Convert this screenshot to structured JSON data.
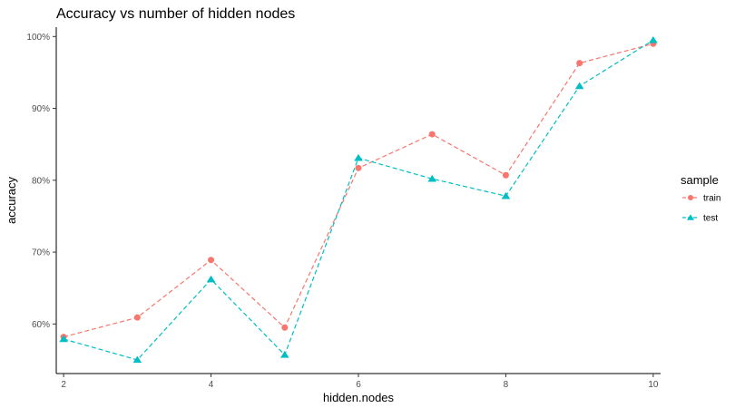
{
  "chart_data": {
    "type": "line",
    "title": "Accuracy vs number of hidden nodes",
    "xlabel": "hidden.nodes",
    "ylabel": "accuracy",
    "x": [
      2,
      3,
      4,
      5,
      6,
      7,
      8,
      9,
      10
    ],
    "xlim": [
      1.9,
      10.1
    ],
    "ylim": [
      53.1,
      101.3
    ],
    "x_ticks": [
      2,
      4,
      6,
      8,
      10
    ],
    "y_ticks": [
      60,
      70,
      80,
      90,
      100
    ],
    "y_tick_labels": [
      "60%",
      "70%",
      "80%",
      "90%",
      "100%"
    ],
    "grid": false,
    "legend_position": "right",
    "legend_title": "sample",
    "series": [
      {
        "name": "train",
        "color": "#F8766D",
        "marker": "circle",
        "values": [
          58.2,
          60.9,
          68.9,
          59.5,
          81.7,
          86.4,
          80.7,
          96.3,
          99.0
        ]
      },
      {
        "name": "test",
        "color": "#00BFC4",
        "marker": "triangle",
        "values": [
          57.9,
          55.0,
          66.2,
          55.7,
          83.1,
          80.2,
          77.8,
          93.1,
          99.5
        ]
      }
    ]
  }
}
